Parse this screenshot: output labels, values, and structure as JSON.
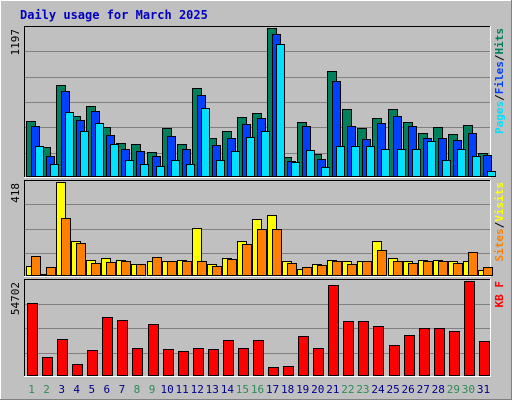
{
  "chart_data": [
    {
      "type": "bar",
      "panel": "top",
      "title": "Daily usage for March 2025",
      "ylabel_parts": [
        "Pages",
        "Files",
        "Hits"
      ],
      "ymax_label": "1197",
      "ylim": [
        0,
        1197
      ],
      "categories": [
        "1",
        "2",
        "3",
        "4",
        "5",
        "6",
        "7",
        "8",
        "9",
        "10",
        "11",
        "12",
        "13",
        "14",
        "15",
        "16",
        "17",
        "18",
        "19",
        "20",
        "21",
        "22",
        "23",
        "24",
        "25",
        "26",
        "27",
        "28",
        "29",
        "30",
        "31"
      ],
      "series": [
        {
          "name": "Hits",
          "values": [
            445,
            231,
            738,
            489,
            566,
            399,
            268,
            260,
            198,
            386,
            260,
            713,
            308,
            364,
            480,
            513,
            1197,
            151,
            440,
            178,
            848,
            542,
            386,
            472,
            545,
            440,
            347,
            399,
            337,
            409,
            190
          ]
        },
        {
          "name": "Files",
          "values": [
            408,
            161,
            687,
            451,
            525,
            333,
            221,
            206,
            163,
            320,
            217,
            656,
            247,
            309,
            424,
            466,
            1145,
            121,
            401,
            138,
            770,
            402,
            302,
            431,
            489,
            402,
            305,
            310,
            294,
            347,
            172
          ]
        },
        {
          "name": "Pages",
          "values": [
            240,
            96,
            516,
            360,
            428,
            262,
            127,
            100,
            81,
            132,
            97,
            552,
            126,
            203,
            313,
            362,
            1071,
            111,
            209,
            71,
            240,
            240,
            240,
            217,
            220,
            216,
            282,
            127,
            219,
            163,
            44
          ]
        }
      ],
      "colors": {
        "Hits": "#00805c",
        "Files": "#0040ff",
        "Pages": "#00e0ff"
      }
    },
    {
      "type": "bar",
      "panel": "middle",
      "ylabel_parts": [
        "Sites",
        "Visits"
      ],
      "ymax_label": "418",
      "ylim": [
        0,
        418
      ],
      "categories": [
        "1",
        "2",
        "3",
        "4",
        "5",
        "6",
        "7",
        "8",
        "9",
        "10",
        "11",
        "12",
        "13",
        "14",
        "15",
        "16",
        "17",
        "18",
        "19",
        "20",
        "21",
        "22",
        "23",
        "24",
        "25",
        "26",
        "27",
        "28",
        "29",
        "30",
        "31"
      ],
      "series": [
        {
          "name": "Visits",
          "values": [
            41,
            0,
            418,
            151,
            69,
            75,
            69,
            48,
            62,
            62,
            69,
            213,
            48,
            75,
            151,
            252,
            268,
            62,
            28,
            48,
            69,
            62,
            62,
            151,
            75,
            62,
            69,
            69,
            62,
            62,
            21
          ]
        },
        {
          "name": "Sites",
          "values": [
            84,
            34,
            256,
            144,
            52,
            57,
            61,
            48,
            79,
            61,
            61,
            62,
            41,
            72,
            141,
            205,
            207,
            55,
            37,
            46,
            62,
            48,
            62,
            112,
            61,
            55,
            64,
            64,
            55,
            103,
            34
          ]
        }
      ],
      "colors": {
        "Visits": "#ffff00",
        "Sites": "#ff8000"
      }
    },
    {
      "type": "bar",
      "panel": "bottom",
      "ylabel": "KB F",
      "ymax_label": "54702",
      "ylim": [
        0,
        54702
      ],
      "categories": [
        "1",
        "2",
        "3",
        "4",
        "5",
        "6",
        "7",
        "8",
        "9",
        "10",
        "11",
        "12",
        "13",
        "14",
        "15",
        "16",
        "17",
        "18",
        "19",
        "20",
        "21",
        "22",
        "23",
        "24",
        "25",
        "26",
        "27",
        "28",
        "29",
        "30",
        "31"
      ],
      "series": [
        {
          "name": "KB F",
          "values": [
            42125,
            10300,
            21000,
            6400,
            14400,
            33600,
            32000,
            15750,
            29600,
            15100,
            14200,
            15600,
            15100,
            20400,
            15600,
            20600,
            4900,
            5000,
            22750,
            15800,
            52500,
            31600,
            31600,
            28700,
            17200,
            23200,
            27600,
            27600,
            25500,
            54702,
            19800
          ]
        }
      ],
      "colors": {
        "KB F": "#ff0000"
      }
    }
  ],
  "x_label_colors": {
    "weekday": "#00008b",
    "weekend": "#2e8b57"
  },
  "weekend_days": [
    "1",
    "2",
    "8",
    "9",
    "15",
    "16",
    "22",
    "23",
    "29",
    "30"
  ]
}
